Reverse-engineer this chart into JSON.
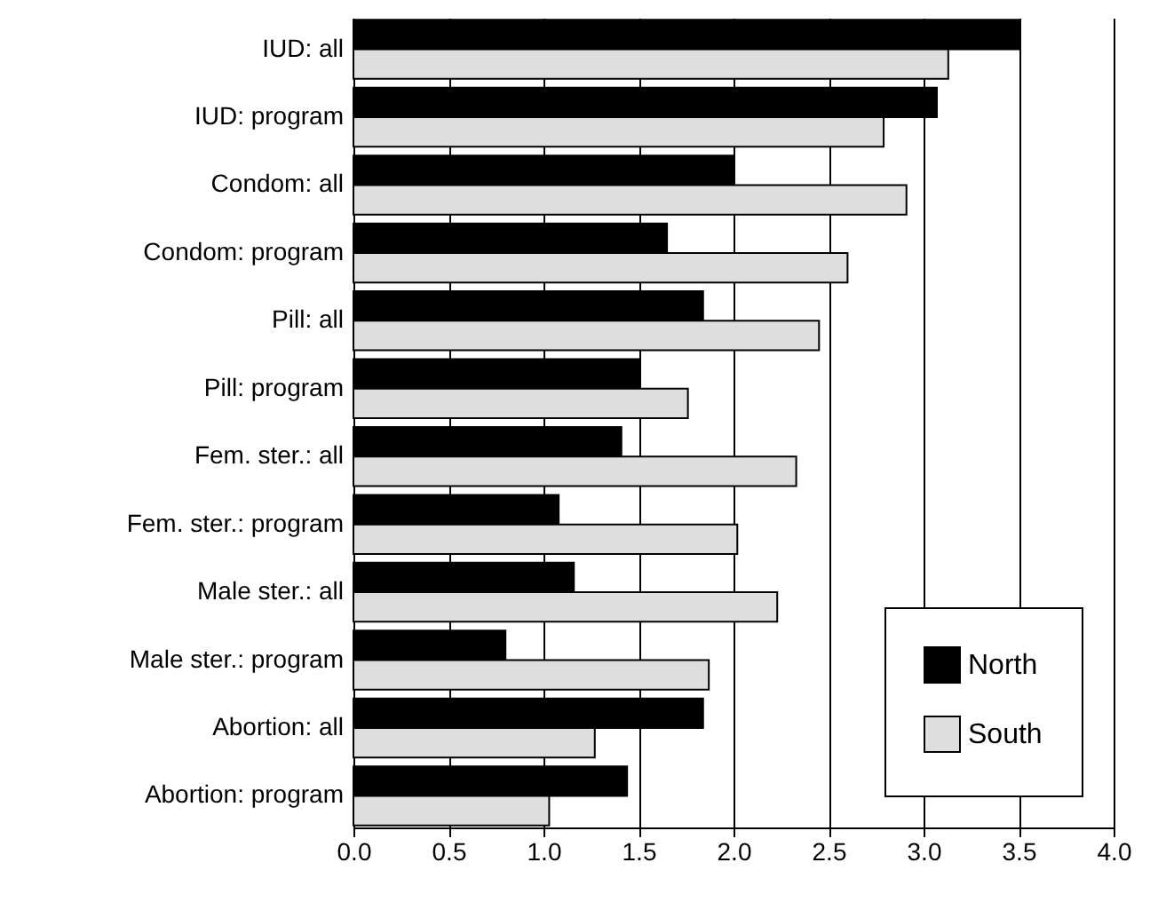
{
  "chart_data": {
    "type": "bar",
    "orientation": "horizontal",
    "categories": [
      "IUD: all",
      "IUD: program",
      "Condom: all",
      "Condom: program",
      "Pill: all",
      "Pill: program",
      "Fem. ster.: all",
      "Fem. ster.: program",
      "Male ster.: all",
      "Male ster.: program",
      "Abortion: all",
      "Abortion: program"
    ],
    "series": [
      {
        "name": "North",
        "color": "#000000",
        "values": [
          3.5,
          3.07,
          2.0,
          1.65,
          1.84,
          1.5,
          1.41,
          1.08,
          1.16,
          0.8,
          1.84,
          1.44
        ]
      },
      {
        "name": "South",
        "color": "#dedede",
        "values": [
          3.13,
          2.79,
          2.91,
          2.6,
          2.45,
          1.76,
          2.33,
          2.02,
          2.23,
          1.87,
          1.27,
          1.03
        ]
      }
    ],
    "xlim": [
      0,
      4
    ],
    "xticks": [
      {
        "value": 0,
        "label": "0.0"
      },
      0.5,
      {
        "value": 1,
        "label": "1.0"
      },
      1.5,
      {
        "value": 2,
        "label": "2.0"
      },
      2.5,
      {
        "value": 3,
        "label": "3.0"
      },
      3.5,
      {
        "value": 4,
        "label": "4.0"
      }
    ],
    "grid": "x",
    "legend": "bottom right"
  }
}
